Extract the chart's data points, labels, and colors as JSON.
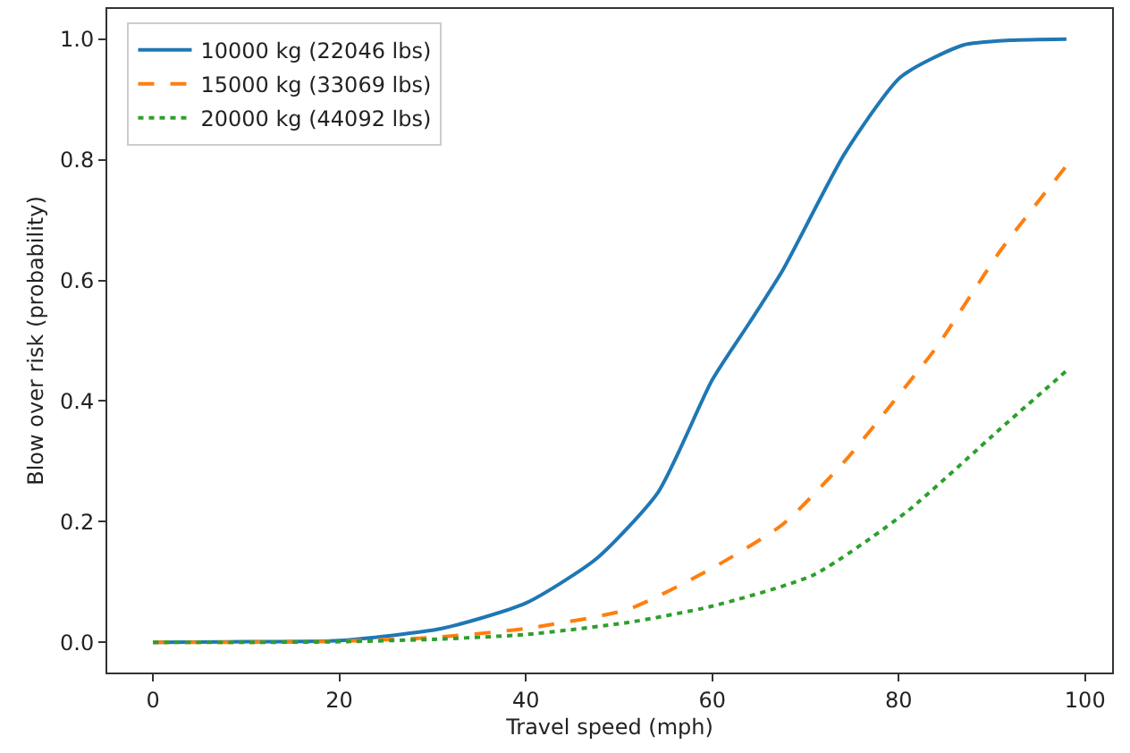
{
  "chart_data": {
    "type": "line",
    "xlabel": "Travel speed (mph)",
    "ylabel": "Blow over risk (probability)",
    "xlim": [
      -4.9,
      102.9
    ],
    "xticks": [
      0,
      20,
      40,
      60,
      80,
      100
    ],
    "ylim": [
      -0.05,
      1.05
    ],
    "yticks": [
      {
        "value": 0,
        "label": "0.0"
      },
      0.2,
      0.4,
      0.6,
      0.8,
      {
        "value": 1,
        "label": "1.0"
      }
    ],
    "legend": "top left",
    "marker": "none",
    "series": [
      {
        "name": "10000 kg (22046 lbs)",
        "color": "#1f77b4",
        "line_style": "solid",
        "x": [
          0,
          10,
          20,
          31,
          40,
          47.6,
          54.2,
          60,
          64,
          67.6,
          74.2,
          80.2,
          86.9,
          92,
          98
        ],
        "values": [
          0.0,
          0.001,
          0.003,
          0.023,
          0.065,
          0.139,
          0.249,
          0.435,
          0.53,
          0.618,
          0.81,
          0.937,
          0.99,
          0.998,
          1.0
        ]
      },
      {
        "name": "15000 kg (33069 lbs)",
        "color": "#ff7f0e",
        "line_style": "dashed",
        "x": [
          0,
          10,
          20,
          30,
          40,
          51,
          60,
          67.6,
          74.2,
          80.9,
          84.1,
          90.9,
          98
        ],
        "values": [
          0.0,
          0.0,
          0.002,
          0.008,
          0.023,
          0.055,
          0.123,
          0.196,
          0.3,
          0.427,
          0.49,
          0.649,
          0.79
        ]
      },
      {
        "name": "20000 kg (44092 lbs)",
        "color": "#2ca02c",
        "line_style": "dotted",
        "x": [
          0,
          10,
          20,
          30,
          40,
          51,
          60,
          70.9,
          80.9,
          90.9,
          98
        ],
        "values": [
          0.0,
          0.0,
          0.001,
          0.005,
          0.013,
          0.033,
          0.06,
          0.112,
          0.217,
          0.354,
          0.45
        ]
      }
    ]
  }
}
